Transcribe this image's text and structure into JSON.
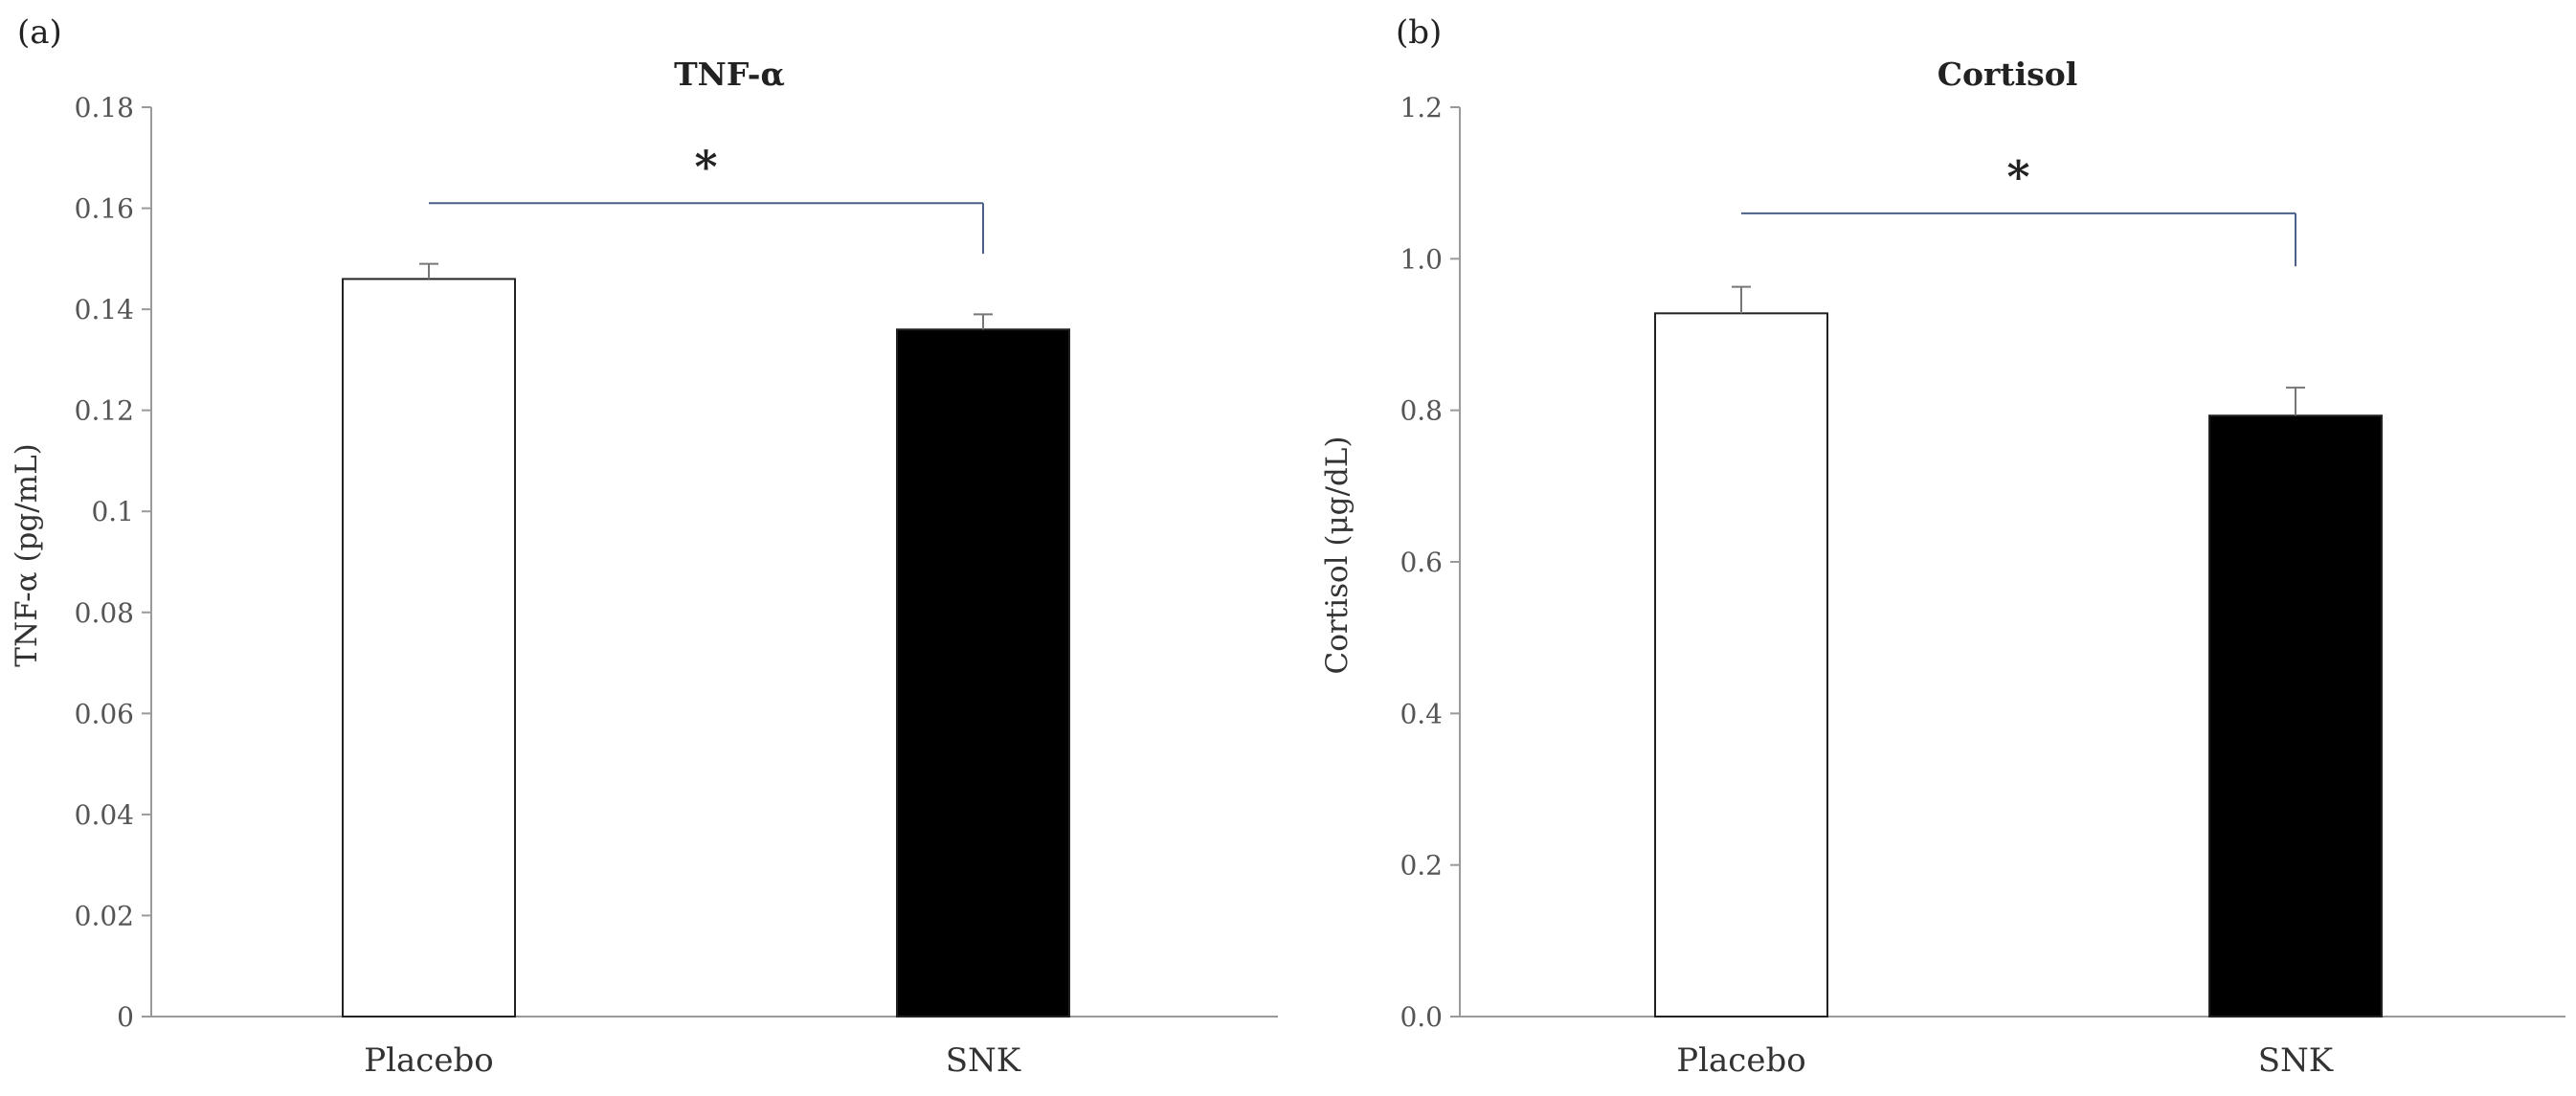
{
  "chart_data": [
    {
      "type": "bar",
      "panel_label": "(a)",
      "title": "TNF-α",
      "ylabel": "TNF-α (pg/mL)",
      "xlabel": "",
      "categories": [
        "Placebo",
        "SNK"
      ],
      "values": [
        0.146,
        0.136
      ],
      "error": [
        0.003,
        0.003
      ],
      "bar_colors": [
        "#ffffff",
        "#000000"
      ],
      "ylim": [
        0,
        0.18
      ],
      "yticks": [
        0,
        0.02,
        0.04,
        0.06,
        0.08,
        0.1,
        0.12,
        0.14,
        0.16,
        0.18
      ],
      "ytick_labels": [
        "0",
        "0.02",
        "0.04",
        "0.06",
        "0.08",
        "0.1",
        "0.12",
        "0.14",
        "0.16",
        "0.18"
      ],
      "grid": false,
      "significance": {
        "from": 0,
        "to": 1,
        "label": "*",
        "y": 0.161,
        "drop_to": 0.151
      },
      "bracket_color": "#4a6088"
    },
    {
      "type": "bar",
      "panel_label": "(b)",
      "title": "Cortisol",
      "ylabel": "Cortisol  (μg/dL)",
      "xlabel": "",
      "categories": [
        "Placebo",
        "SNK"
      ],
      "values": [
        0.928,
        0.793
      ],
      "error": [
        0.035,
        0.037
      ],
      "bar_colors": [
        "#ffffff",
        "#000000"
      ],
      "ylim": [
        0,
        1.2
      ],
      "yticks": [
        0,
        0.2,
        0.4,
        0.6,
        0.8,
        1.0,
        1.2
      ],
      "ytick_labels": [
        "0.0",
        "0.2",
        "0.4",
        "0.6",
        "0.8",
        "1.0",
        "1.2"
      ],
      "grid": false,
      "significance": {
        "from": 0,
        "to": 1,
        "label": "*",
        "y": 1.06,
        "drop_to": 0.99
      },
      "bracket_color": "#4a6088"
    }
  ]
}
